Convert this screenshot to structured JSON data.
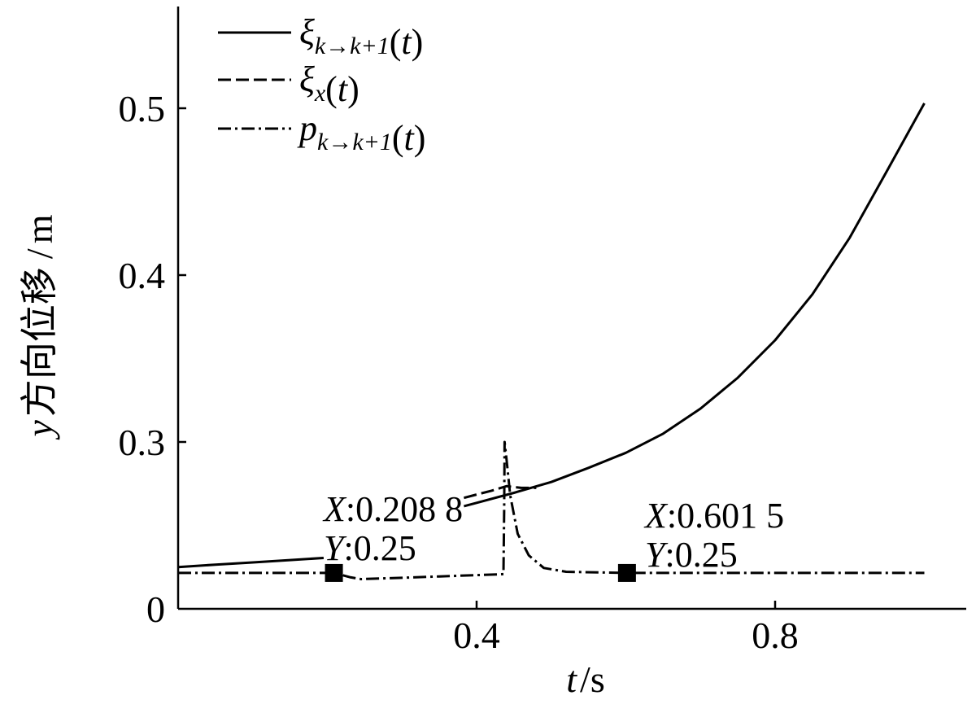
{
  "chart_data": {
    "type": "line",
    "title": "",
    "xlabel": {
      "var": "t",
      "unit": "s"
    },
    "ylabel": {
      "var": "y",
      "text": "方向位移",
      "unit": "m"
    },
    "xlim": [
      0,
      1.06
    ],
    "ylim": [
      0.2,
      0.59
    ],
    "xticks": [
      {
        "value": 0.4,
        "label": "0.4"
      },
      {
        "value": 0.8,
        "label": "0.8"
      }
    ],
    "yticks": [
      {
        "value": 0.2,
        "label": "0"
      },
      {
        "value": 0.3,
        "label": "0.3"
      },
      {
        "value": 0.4,
        "label": "0.4"
      },
      {
        "value": 0.5,
        "label": "0.5"
      }
    ],
    "legend_position": "top-left",
    "series": [
      {
        "name": "ξ_{k→k+1}(t)",
        "legend": {
          "main": "ξ",
          "sub": "k→k+1",
          "arg": "(t)"
        },
        "style": "solid",
        "segments": [
          [
            [
              0,
              0.225
            ],
            [
              0.05,
              0.2265
            ],
            [
              0.1,
              0.2278
            ],
            [
              0.15,
              0.2292
            ],
            [
              0.195,
              0.2305
            ]
          ],
          [
            [
              0.383,
              0.2615
            ],
            [
              0.4,
              0.2635
            ],
            [
              0.45,
              0.2695
            ],
            [
              0.5,
              0.276
            ],
            [
              0.55,
              0.2845
            ],
            [
              0.6,
              0.2935
            ],
            [
              0.65,
              0.305
            ],
            [
              0.7,
              0.32
            ],
            [
              0.75,
              0.3385
            ],
            [
              0.8,
              0.361
            ],
            [
              0.85,
              0.3885
            ],
            [
              0.9,
              0.4225
            ],
            [
              0.95,
              0.4625
            ],
            [
              1.0,
              0.503
            ]
          ]
        ]
      },
      {
        "name": "ξ_x(t)",
        "legend": {
          "main": "ξ",
          "sub": "x",
          "arg": "(t)"
        },
        "style": "dashed",
        "segments": [
          [
            [
              0.383,
              0.2665
            ],
            [
              0.4,
              0.2685
            ],
            [
              0.42,
              0.2708
            ],
            [
              0.44,
              0.2735
            ],
            [
              0.46,
              0.2725
            ],
            [
              0.48,
              0.2725
            ]
          ]
        ]
      },
      {
        "name": "p_{k→k+1}(t)",
        "legend": {
          "main": "p",
          "sub": "k→k+1",
          "arg": "(t)"
        },
        "style": "dashdot",
        "segments": [
          [
            [
              0,
              0.2215
            ],
            [
              0.209,
              0.2215
            ],
            [
              0.23,
              0.219
            ],
            [
              0.245,
              0.2178
            ],
            [
              0.3,
              0.2186
            ],
            [
              0.35,
              0.2194
            ],
            [
              0.4,
              0.2202
            ],
            [
              0.436,
              0.2208
            ],
            [
              0.437,
              0.26
            ],
            [
              0.4375,
              0.3
            ],
            [
              0.44,
              0.29
            ],
            [
              0.445,
              0.268
            ],
            [
              0.455,
              0.245
            ],
            [
              0.47,
              0.232
            ],
            [
              0.49,
              0.2245
            ],
            [
              0.52,
              0.2222
            ],
            [
              0.6,
              0.2215
            ],
            [
              1.0,
              0.2215
            ]
          ]
        ]
      }
    ],
    "markers": [
      {
        "x": 0.2088,
        "y": 0.2215,
        "x_text": "0.208 8",
        "y_text": "0.25"
      },
      {
        "x": 0.6015,
        "y": 0.2215,
        "x_text": "0.601 5",
        "y_text": "0.25"
      }
    ]
  }
}
